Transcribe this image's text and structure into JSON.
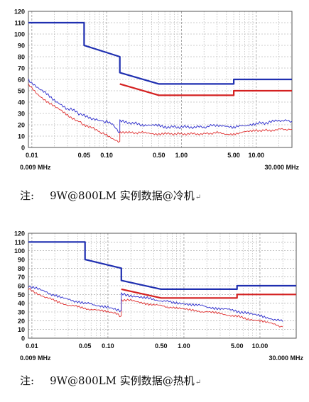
{
  "chart_data": [
    {
      "type": "line",
      "xscale": "log",
      "xlim": [
        0.009,
        30
      ],
      "ylim": [
        0,
        120
      ],
      "grid": true,
      "y_ticks": [
        0,
        10,
        20,
        30,
        40,
        50,
        60,
        70,
        80,
        90,
        100,
        110,
        120
      ],
      "x_tick_labels": [
        {
          "x": 0.01,
          "label": "0.01"
        },
        {
          "x": 0.05,
          "label": "0.05"
        },
        {
          "x": 0.1,
          "label": "0.10"
        },
        {
          "x": 0.5,
          "label": "0.50"
        },
        {
          "x": 1,
          "label": "1.00"
        },
        {
          "x": 5,
          "label": "5.00"
        },
        {
          "x": 10,
          "label": "10.00"
        }
      ],
      "x_start_label": "0.009 MHz",
      "x_end_label": "30.000 MHz",
      "colors": {
        "limit_qp": "#1f2fb0",
        "limit_avg": "#d42020",
        "meas_qp": "#2a2acc",
        "meas_avg": "#e03030",
        "grid": "#9a9a9a"
      },
      "series": [
        {
          "role": "limit_qp",
          "x": [
            0.009,
            0.05,
            0.05,
            0.15,
            0.15,
            0.5,
            0.5,
            5,
            5,
            30
          ],
          "y": [
            110,
            110,
            90,
            80,
            66,
            56,
            56,
            56,
            60,
            60
          ]
        },
        {
          "role": "limit_avg",
          "x": [
            0.15,
            0.5,
            0.5,
            5,
            5,
            30
          ],
          "y": [
            56,
            46,
            46,
            46,
            50,
            50
          ]
        },
        {
          "role": "meas_qp",
          "x": [
            0.009,
            0.012,
            0.015,
            0.02,
            0.025,
            0.03,
            0.035,
            0.04,
            0.045,
            0.05,
            0.06,
            0.07,
            0.08,
            0.09,
            0.1,
            0.12,
            0.15,
            0.15,
            0.2,
            0.3,
            0.5,
            0.7,
            1,
            2,
            3,
            4,
            5,
            6,
            8,
            10,
            15,
            20,
            30
          ],
          "y": [
            60,
            52,
            48,
            42,
            38,
            34,
            33,
            31,
            29,
            28,
            26,
            25,
            24,
            23,
            23,
            20,
            12,
            23,
            22,
            20,
            19,
            18,
            18,
            18,
            20,
            18,
            17,
            19,
            20,
            21,
            22,
            24,
            23
          ]
        },
        {
          "role": "meas_avg",
          "x": [
            0.009,
            0.012,
            0.015,
            0.02,
            0.025,
            0.03,
            0.035,
            0.04,
            0.045,
            0.05,
            0.06,
            0.07,
            0.08,
            0.09,
            0.1,
            0.12,
            0.15,
            0.15,
            0.2,
            0.3,
            0.5,
            0.7,
            1,
            2,
            3,
            4,
            5,
            6,
            8,
            10,
            15,
            20,
            30
          ],
          "y": [
            55,
            47,
            42,
            36,
            32,
            28,
            26,
            24,
            22,
            20,
            18,
            16,
            14,
            12,
            11,
            8,
            5,
            14,
            13,
            13,
            12,
            12,
            12,
            12,
            13,
            12,
            12,
            13,
            14,
            15,
            15,
            16,
            16
          ]
        }
      ],
      "caption": {
        "prefix": "注:",
        "text": "9W@800LM  实例数据@冷机",
        "mark": "↵"
      }
    },
    {
      "type": "line",
      "xscale": "log",
      "xlim": [
        0.009,
        30
      ],
      "ylim": [
        0,
        120
      ],
      "grid": true,
      "y_ticks": [
        0,
        10,
        20,
        30,
        40,
        50,
        60,
        70,
        80,
        90,
        100,
        110,
        120
      ],
      "x_tick_labels": [
        {
          "x": 0.01,
          "label": "0.01"
        },
        {
          "x": 0.05,
          "label": "0.05"
        },
        {
          "x": 0.1,
          "label": "0.10"
        },
        {
          "x": 0.5,
          "label": "0.50"
        },
        {
          "x": 1,
          "label": "1.00"
        },
        {
          "x": 5,
          "label": "5.00"
        },
        {
          "x": 10,
          "label": "10.00"
        }
      ],
      "x_start_label": "0.009 MHz",
      "x_end_label": "30.000 MHz",
      "colors": {
        "limit_qp": "#1f2fb0",
        "limit_avg": "#d42020",
        "meas_qp": "#2a2acc",
        "meas_avg": "#e03030",
        "grid": "#9a9a9a"
      },
      "series": [
        {
          "role": "limit_qp",
          "x": [
            0.009,
            0.05,
            0.05,
            0.15,
            0.15,
            0.5,
            0.5,
            5,
            5,
            30
          ],
          "y": [
            110,
            110,
            90,
            80,
            66,
            56,
            56,
            56,
            60,
            60
          ]
        },
        {
          "role": "limit_avg",
          "x": [
            0.15,
            0.5,
            0.5,
            5,
            5,
            30
          ],
          "y": [
            56,
            46,
            46,
            46,
            50,
            50
          ]
        },
        {
          "role": "meas_qp",
          "x": [
            0.009,
            0.012,
            0.015,
            0.02,
            0.025,
            0.03,
            0.04,
            0.05,
            0.07,
            0.1,
            0.13,
            0.15,
            0.15,
            0.2,
            0.3,
            0.5,
            0.7,
            1,
            1.5,
            2,
            3,
            5,
            7,
            10,
            15,
            20
          ],
          "y": [
            60,
            56,
            53,
            49,
            46,
            44,
            42,
            40,
            38,
            36,
            33,
            30,
            50,
            49,
            46,
            43,
            41,
            40,
            38,
            36,
            34,
            31,
            28,
            26,
            22,
            19
          ]
        },
        {
          "role": "meas_avg",
          "x": [
            0.009,
            0.012,
            0.015,
            0.02,
            0.025,
            0.03,
            0.04,
            0.05,
            0.07,
            0.1,
            0.13,
            0.15,
            0.15,
            0.2,
            0.3,
            0.5,
            0.7,
            1,
            1.5,
            2,
            3,
            5,
            7,
            10,
            15,
            20
          ],
          "y": [
            56,
            51,
            47,
            43,
            40,
            38,
            36,
            34,
            32,
            30,
            28,
            25,
            44,
            43,
            40,
            37,
            35,
            33,
            31,
            30,
            28,
            25,
            22,
            20,
            16,
            13
          ]
        }
      ],
      "caption": {
        "prefix": "注:",
        "text": "9W@800LM  实例数据@热机",
        "mark": "↵"
      }
    }
  ]
}
